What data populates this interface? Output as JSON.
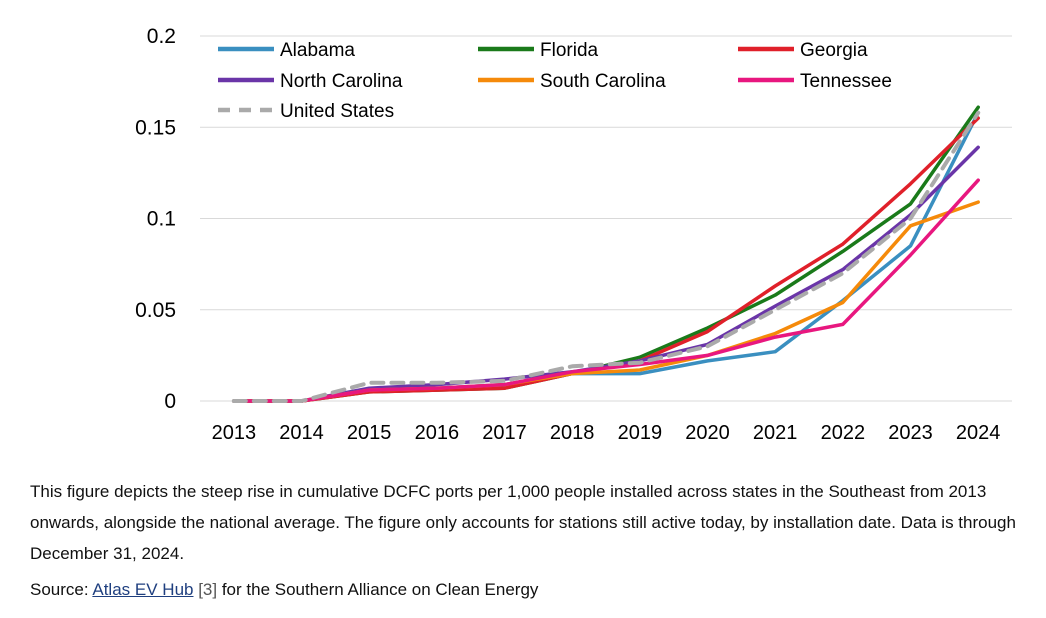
{
  "chart_data": {
    "type": "line",
    "x": [
      2013,
      2014,
      2015,
      2016,
      2017,
      2018,
      2019,
      2020,
      2021,
      2022,
      2023,
      2024
    ],
    "ylim": [
      0,
      0.2
    ],
    "yticks": [
      "0",
      "0.05",
      "0.1",
      "0.15",
      "0.2"
    ],
    "grid": true,
    "legend_position": "top",
    "series": [
      {
        "name": "Alabama",
        "color": "#3a8fc0",
        "dash": false,
        "values": [
          0,
          0,
          0.006,
          0.007,
          0.009,
          0.015,
          0.015,
          0.022,
          0.027,
          0.055,
          0.085,
          0.158
        ]
      },
      {
        "name": "Florida",
        "color": "#1a7a1a",
        "dash": false,
        "values": [
          0,
          0,
          0.005,
          0.006,
          0.007,
          0.015,
          0.024,
          0.04,
          0.058,
          0.082,
          0.108,
          0.161
        ]
      },
      {
        "name": "Georgia",
        "color": "#e0202a",
        "dash": false,
        "values": [
          0,
          0,
          0.005,
          0.006,
          0.007,
          0.015,
          0.022,
          0.038,
          0.063,
          0.086,
          0.119,
          0.155
        ]
      },
      {
        "name": "North Carolina",
        "color": "#6a35a8",
        "dash": false,
        "values": [
          0,
          0,
          0.007,
          0.009,
          0.012,
          0.016,
          0.022,
          0.031,
          0.052,
          0.072,
          0.102,
          0.139
        ]
      },
      {
        "name": "South Carolina",
        "color": "#f58a0a",
        "dash": false,
        "values": [
          0,
          0,
          0.006,
          0.007,
          0.009,
          0.015,
          0.017,
          0.025,
          0.037,
          0.054,
          0.096,
          0.109
        ]
      },
      {
        "name": "Tennessee",
        "color": "#e8177f",
        "dash": false,
        "values": [
          0,
          0,
          0.006,
          0.007,
          0.009,
          0.016,
          0.02,
          0.025,
          0.035,
          0.042,
          0.08,
          0.121
        ]
      },
      {
        "name": "United States",
        "color": "#aaaaaa",
        "dash": true,
        "values": [
          0,
          0,
          0.01,
          0.01,
          0.011,
          0.019,
          0.021,
          0.03,
          0.05,
          0.07,
          0.1,
          0.158
        ]
      }
    ]
  },
  "caption": "This figure depicts the steep rise in cumulative DCFC ports per 1,000 people installed across states in the Southeast from 2013 onwards, alongside the national average. The figure only accounts for stations still active today, by installation date. Data is through December 31, 2024.",
  "source": {
    "prefix": "Source: ",
    "link_text": "Atlas EV Hub",
    "ref": " [3]",
    "suffix": " for the Southern Alliance on Clean Energy"
  }
}
